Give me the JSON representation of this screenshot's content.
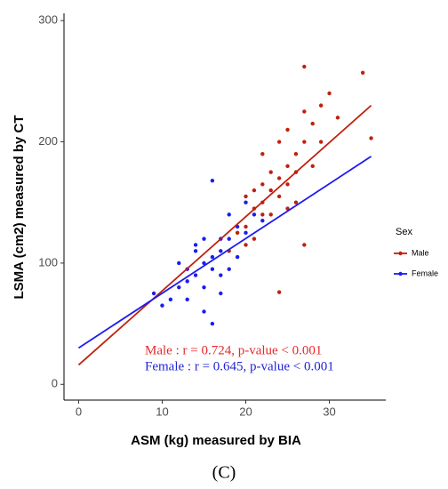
{
  "chart_data": {
    "type": "scatter",
    "x_label": "ASM (kg) measured by BIA",
    "y_label": "LSMA (cm2) measured by CT",
    "caption": "(C)",
    "legend_title": "Sex",
    "legend": "right",
    "xlim": [
      -1.75,
      36.75
    ],
    "xticks": [
      0,
      10,
      20,
      30
    ],
    "ylim": [
      -13,
      306
    ],
    "yticks": [
      0,
      100,
      200,
      300
    ],
    "annotations": [
      {
        "text": "Male : r = 0.724, p-value < 0.001",
        "color": "#e8282b"
      },
      {
        "text": "Female : r = 0.645, p-value < 0.001",
        "color": "#2323d8"
      }
    ],
    "series": [
      {
        "name": "Male",
        "color": "#c0200e",
        "fit_color": "#c0200e",
        "x": [
          20,
          21,
          22,
          23,
          24,
          25,
          26,
          27,
          28,
          29,
          22,
          23,
          24,
          25,
          26,
          21,
          20,
          19,
          22,
          24,
          25,
          27,
          30,
          27,
          34,
          35,
          28,
          29,
          31,
          23,
          22,
          26,
          24,
          27,
          21,
          25,
          20,
          18
        ],
        "values": [
          130,
          145,
          150,
          160,
          170,
          180,
          190,
          200,
          215,
          230,
          140,
          175,
          155,
          165,
          175,
          120,
          155,
          125,
          190,
          200,
          210,
          225,
          240,
          262,
          257,
          203,
          180,
          200,
          220,
          140,
          165,
          150,
          76,
          115,
          160,
          145,
          115,
          110
        ],
        "fit_x": [
          0,
          35
        ],
        "fit_values": [
          16,
          230
        ]
      },
      {
        "name": "Female",
        "color": "#1c1cf0",
        "fit_color": "#1c1cf0",
        "x": [
          15,
          16,
          14,
          17,
          18,
          13,
          12,
          16,
          17,
          19,
          20,
          15,
          14,
          13,
          11,
          10,
          16,
          18,
          21,
          17,
          16,
          15,
          12,
          14,
          19,
          20,
          22,
          13,
          15,
          18,
          17,
          9
        ],
        "values": [
          100,
          105,
          90,
          110,
          120,
          85,
          80,
          95,
          120,
          130,
          125,
          80,
          110,
          95,
          70,
          65,
          168,
          140,
          140,
          75,
          50,
          60,
          100,
          115,
          105,
          150,
          135,
          70,
          120,
          95,
          90,
          75
        ],
        "fit_x": [
          0,
          35
        ],
        "fit_values": [
          30,
          188
        ]
      }
    ]
  }
}
